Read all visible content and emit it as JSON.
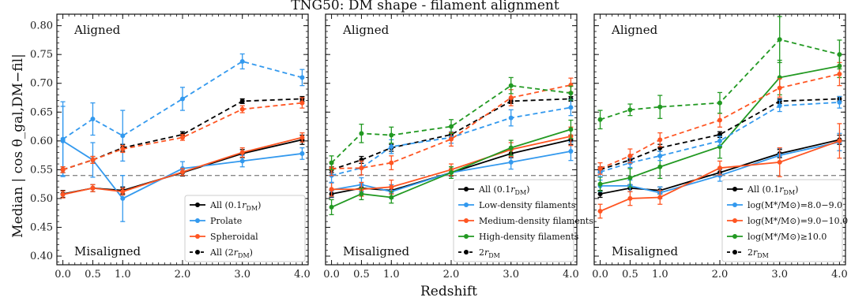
{
  "figure": {
    "title": "TNG50: DM shape - filament alignment",
    "xlabel": "Redshift",
    "ylabel": "Median | cos θ_gal,DM−fil|"
  },
  "chart_data": [
    {
      "type": "line",
      "panel": "left",
      "x": [
        0.0,
        0.5,
        1.0,
        2.0,
        3.0,
        4.0
      ],
      "xticks": [
        "0.0",
        "0.5",
        "1.0",
        "2.0",
        "3.0",
        "4.0"
      ],
      "yticks": [
        "0.40",
        "0.45",
        "0.50",
        "0.55",
        "0.60",
        "0.65",
        "0.70",
        "0.75",
        "0.80"
      ],
      "xlim": [
        -0.1,
        4.1
      ],
      "ylim": [
        0.385,
        0.82
      ],
      "reference_line": 0.54,
      "grid": false,
      "legend_position": "lower right",
      "annotations": [
        "Aligned",
        "Misaligned"
      ],
      "series": [
        {
          "name": "All (0.1r_DM)",
          "color": "#000000",
          "dashed": false,
          "values": [
            0.508,
            0.518,
            0.514,
            0.545,
            0.578,
            0.602
          ],
          "err": [
            0.006,
            0.006,
            0.006,
            0.006,
            0.007,
            0.008
          ]
        },
        {
          "name": "Prolate",
          "color": "#3399ee",
          "dashed": false,
          "values": [
            0.6,
            0.567,
            0.5,
            0.552,
            0.565,
            0.578
          ],
          "err": [
            0.06,
            0.03,
            0.04,
            0.012,
            0.01,
            0.01
          ]
        },
        {
          "name": "Spheroidal",
          "color": "#ff5522",
          "dashed": false,
          "values": [
            0.507,
            0.518,
            0.512,
            0.546,
            0.58,
            0.606
          ],
          "err": [
            0.006,
            0.006,
            0.006,
            0.006,
            0.008,
            0.008
          ]
        },
        {
          "name": "All (2r_DM)",
          "color": "#000000",
          "dashed": true,
          "values": [
            0.55,
            0.567,
            0.588,
            0.611,
            0.669,
            0.673
          ],
          "err": [
            0.005,
            0.006,
            0.006,
            0.005,
            0.004,
            0.004
          ]
        },
        {
          "name": "",
          "color": "#3399ee",
          "dashed": true,
          "values": [
            0.603,
            0.638,
            0.609,
            0.673,
            0.738,
            0.71
          ],
          "err": [
            0.065,
            0.028,
            0.044,
            0.02,
            0.013,
            0.014
          ]
        },
        {
          "name": "",
          "color": "#ff5522",
          "dashed": true,
          "values": [
            0.55,
            0.567,
            0.586,
            0.606,
            0.655,
            0.666
          ],
          "err": [
            0.005,
            0.006,
            0.006,
            0.005,
            0.006,
            0.009
          ]
        }
      ]
    },
    {
      "type": "line",
      "panel": "middle",
      "x": [
        0.0,
        0.5,
        1.0,
        2.0,
        3.0,
        4.0
      ],
      "xticks": [
        "0.0",
        "0.5",
        "1.0",
        "2.0",
        "3.0",
        "4.0"
      ],
      "xlim": [
        -0.1,
        4.1
      ],
      "ylim": [
        0.385,
        0.82
      ],
      "reference_line": 0.54,
      "grid": false,
      "legend_position": "lower right",
      "annotations": [
        "Aligned",
        "Misaligned"
      ],
      "series": [
        {
          "name": "All (0.1r_DM)",
          "color": "#000000",
          "dashed": false,
          "values": [
            0.508,
            0.518,
            0.514,
            0.545,
            0.578,
            0.602
          ],
          "err": [
            0.006,
            0.006,
            0.006,
            0.006,
            0.007,
            0.008
          ]
        },
        {
          "name": "Low-density filaments",
          "color": "#3399ee",
          "dashed": false,
          "values": [
            0.515,
            0.524,
            0.512,
            0.545,
            0.563,
            0.582
          ],
          "err": [
            0.012,
            0.012,
            0.012,
            0.01,
            0.012,
            0.016
          ]
        },
        {
          "name": "Medium-density filaments",
          "color": "#ff5522",
          "dashed": false,
          "values": [
            0.516,
            0.516,
            0.52,
            0.55,
            0.585,
            0.608
          ],
          "err": [
            0.012,
            0.012,
            0.012,
            0.01,
            0.012,
            0.016
          ]
        },
        {
          "name": "High-density filaments",
          "color": "#229922",
          "dashed": false,
          "values": [
            0.485,
            0.508,
            0.502,
            0.545,
            0.588,
            0.62
          ],
          "err": [
            0.013,
            0.01,
            0.01,
            0.01,
            0.013,
            0.016
          ]
        },
        {
          "name": "2r_DM",
          "color": "#000000",
          "dashed": true,
          "values": [
            0.55,
            0.567,
            0.588,
            0.611,
            0.669,
            0.673
          ],
          "err": [
            0.005,
            0.006,
            0.006,
            0.005,
            0.004,
            0.004
          ]
        },
        {
          "name": "",
          "color": "#3399ee",
          "dashed": true,
          "values": [
            0.54,
            0.553,
            0.59,
            0.606,
            0.64,
            0.658
          ],
          "err": [
            0.012,
            0.012,
            0.012,
            0.01,
            0.014,
            0.014
          ]
        },
        {
          "name": "",
          "color": "#ff5522",
          "dashed": true,
          "values": [
            0.552,
            0.553,
            0.562,
            0.603,
            0.675,
            0.697
          ],
          "err": [
            0.012,
            0.012,
            0.012,
            0.012,
            0.014,
            0.012
          ]
        },
        {
          "name": "",
          "color": "#229922",
          "dashed": true,
          "values": [
            0.562,
            0.613,
            0.61,
            0.625,
            0.696,
            0.683
          ],
          "err": [
            0.012,
            0.016,
            0.014,
            0.012,
            0.014,
            0.012
          ]
        }
      ]
    },
    {
      "type": "line",
      "panel": "right",
      "x": [
        0.0,
        0.5,
        1.0,
        2.0,
        3.0,
        4.0
      ],
      "xticks": [
        "0.0",
        "0.5",
        "1.0",
        "2.0",
        "3.0",
        "4.0"
      ],
      "xlim": [
        -0.1,
        4.1
      ],
      "ylim": [
        0.385,
        0.82
      ],
      "reference_line": 0.54,
      "grid": false,
      "legend_position": "lower right",
      "annotations": [
        "Aligned",
        "Misaligned"
      ],
      "series": [
        {
          "name": "All (0.1r_DM)",
          "color": "#000000",
          "dashed": false,
          "values": [
            0.508,
            0.518,
            0.514,
            0.545,
            0.578,
            0.602
          ],
          "err": [
            0.006,
            0.006,
            0.006,
            0.006,
            0.007,
            0.008
          ]
        },
        {
          "name": "log(M*/M⊙)=8.0−9.0",
          "color": "#3399ee",
          "dashed": false,
          "values": [
            0.522,
            0.522,
            0.51,
            0.54,
            0.575,
            0.598
          ],
          "err": [
            0.01,
            0.01,
            0.01,
            0.01,
            0.012,
            0.015
          ]
        },
        {
          "name": "log(M*/M⊙)=9.0−10.0",
          "color": "#ff5522",
          "dashed": false,
          "values": [
            0.478,
            0.5,
            0.502,
            0.553,
            0.563,
            0.6
          ],
          "err": [
            0.012,
            0.012,
            0.012,
            0.012,
            0.025,
            0.03
          ]
        },
        {
          "name": "log(M*/M⊙)≥10.0",
          "color": "#229922",
          "dashed": false,
          "values": [
            0.525,
            0.536,
            0.555,
            0.59,
            0.71,
            0.73
          ],
          "err": [
            0.012,
            0.016,
            0.02,
            0.02,
            0.03,
            0.02
          ]
        },
        {
          "name": "2r_DM",
          "color": "#000000",
          "dashed": true,
          "values": [
            0.55,
            0.567,
            0.588,
            0.611,
            0.669,
            0.673
          ],
          "err": [
            0.005,
            0.006,
            0.006,
            0.005,
            0.004,
            0.004
          ]
        },
        {
          "name": "",
          "color": "#3399ee",
          "dashed": true,
          "values": [
            0.546,
            0.562,
            0.574,
            0.6,
            0.661,
            0.667
          ],
          "err": [
            0.008,
            0.008,
            0.008,
            0.008,
            0.01,
            0.01
          ]
        },
        {
          "name": "",
          "color": "#ff5522",
          "dashed": true,
          "values": [
            0.552,
            0.574,
            0.602,
            0.636,
            0.692,
            0.716
          ],
          "err": [
            0.01,
            0.012,
            0.012,
            0.012,
            0.016,
            0.02
          ]
        },
        {
          "name": "",
          "color": "#229922",
          "dashed": true,
          "values": [
            0.637,
            0.654,
            0.659,
            0.666,
            0.776,
            0.75
          ],
          "err": [
            0.016,
            0.01,
            0.02,
            0.018,
            0.04,
            0.025
          ]
        }
      ]
    }
  ]
}
